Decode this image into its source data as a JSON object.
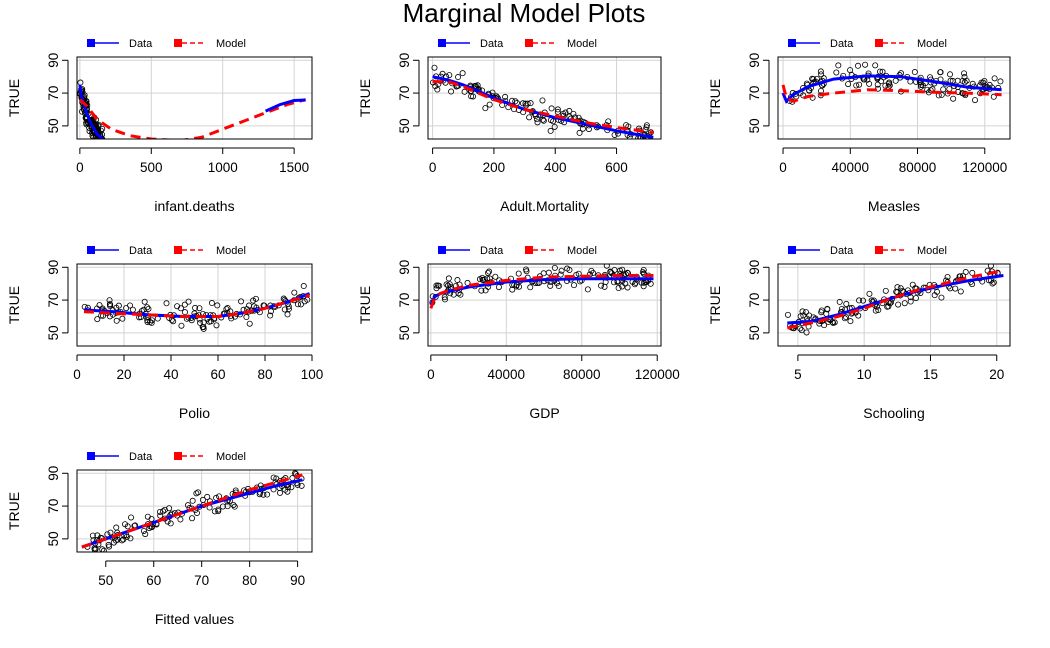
{
  "title": "Marginal Model Plots",
  "legend": {
    "data_label": "Data",
    "model_label": "Model",
    "data_color": "#0000FF",
    "model_color": "#FF0000"
  },
  "chart_data": [
    {
      "type": "scatter",
      "xlabel": "infant.deaths",
      "ylabel": "TRUE",
      "xlim": [
        -20,
        1625
      ],
      "ylim": [
        42,
        92
      ],
      "xticks": [
        0,
        500,
        1000,
        1500
      ],
      "xtick_labels": [
        "0",
        "500",
        "1000",
        "1500"
      ],
      "yticks": [
        50,
        70,
        90
      ],
      "ytick_labels": [
        "50",
        "70",
        "90"
      ],
      "series": [
        {
          "name": "Data",
          "style": "solid",
          "values": [
            [
              0,
              75
            ],
            [
              10,
              68
            ],
            [
              25,
              64
            ],
            [
              50,
              57
            ],
            [
              80,
              51
            ],
            [
              120,
              45
            ],
            [
              160,
              42
            ]
          ]
        },
        {
          "name": "Model",
          "style": "dashed",
          "values": [
            [
              0,
              66
            ],
            [
              50,
              62
            ],
            [
              120,
              54
            ],
            [
              220,
              48
            ],
            [
              350,
              44
            ],
            [
              500,
              42
            ],
            [
              700,
              41
            ],
            [
              850,
              43
            ],
            [
              1000,
              48
            ],
            [
              1150,
              53
            ],
            [
              1300,
              58
            ],
            [
              1450,
              63
            ],
            [
              1580,
              66
            ]
          ]
        },
        {
          "name": "Data",
          "style": "solid",
          "values": [
            [
              1300,
              59
            ],
            [
              1400,
              63
            ],
            [
              1500,
              65.5
            ],
            [
              1580,
              65.8
            ]
          ]
        }
      ]
    },
    {
      "type": "scatter",
      "xlabel": "Adult.Mortality",
      "ylabel": "TRUE",
      "xlim": [
        -15,
        745
      ],
      "ylim": [
        42,
        92
      ],
      "xticks": [
        0,
        200,
        400,
        600
      ],
      "xtick_labels": [
        "0",
        "200",
        "400",
        "600"
      ],
      "yticks": [
        50,
        70,
        90
      ],
      "ytick_labels": [
        "50",
        "70",
        "90"
      ],
      "series": [
        {
          "name": "Data",
          "style": "solid",
          "values": [
            [
              0,
              80
            ],
            [
              50,
              78
            ],
            [
              100,
              75
            ],
            [
              150,
              71
            ],
            [
              200,
              67
            ],
            [
              300,
              60
            ],
            [
              400,
              55
            ],
            [
              500,
              51
            ],
            [
              600,
              47
            ],
            [
              720,
              43
            ]
          ]
        },
        {
          "name": "Model",
          "style": "dashed",
          "values": [
            [
              0,
              77
            ],
            [
              50,
              77
            ],
            [
              100,
              74
            ],
            [
              150,
              70
            ],
            [
              200,
              66
            ],
            [
              300,
              60
            ],
            [
              400,
              56
            ],
            [
              500,
              52
            ],
            [
              600,
              49
            ],
            [
              720,
              46
            ]
          ]
        }
      ]
    },
    {
      "type": "scatter",
      "xlabel": "Measles",
      "ylabel": "TRUE",
      "xlim": [
        -3000,
        135000
      ],
      "ylim": [
        42,
        92
      ],
      "xticks": [
        0,
        40000,
        80000,
        120000
      ],
      "xtick_labels": [
        "0",
        "40000",
        "80000",
        "120000"
      ],
      "yticks": [
        50,
        70,
        90
      ],
      "ytick_labels": [
        "50",
        "70",
        "90"
      ],
      "series": [
        {
          "name": "Data",
          "style": "solid",
          "values": [
            [
              0,
              70
            ],
            [
              2000,
              65
            ],
            [
              6000,
              69
            ],
            [
              15000,
              74
            ],
            [
              30000,
              78.5
            ],
            [
              50000,
              80.5
            ],
            [
              70000,
              80
            ],
            [
              90000,
              77
            ],
            [
              110000,
              73.5
            ],
            [
              130000,
              72
            ]
          ]
        },
        {
          "name": "Model",
          "style": "dashed",
          "values": [
            [
              0,
              75
            ],
            [
              2000,
              67
            ],
            [
              6000,
              65
            ],
            [
              15000,
              68
            ],
            [
              30000,
              70
            ],
            [
              50000,
              72
            ],
            [
              70000,
              71.5
            ],
            [
              90000,
              70.5
            ],
            [
              110000,
              70
            ],
            [
              130000,
              69
            ]
          ]
        }
      ]
    },
    {
      "type": "scatter",
      "xlabel": "Polio",
      "ylabel": "TRUE",
      "xlim": [
        0,
        100
      ],
      "ylim": [
        42,
        92
      ],
      "xticks": [
        0,
        20,
        40,
        60,
        80,
        100
      ],
      "xtick_labels": [
        "0",
        "20",
        "40",
        "60",
        "80",
        "100"
      ],
      "yticks": [
        50,
        70,
        90
      ],
      "ytick_labels": [
        "50",
        "70",
        "90"
      ],
      "series": [
        {
          "name": "Data",
          "style": "solid",
          "values": [
            [
              3,
              64
            ],
            [
              15,
              63
            ],
            [
              30,
              61
            ],
            [
              45,
              60
            ],
            [
              60,
              60
            ],
            [
              70,
              62
            ],
            [
              80,
              65
            ],
            [
              90,
              69
            ],
            [
              99,
              74
            ]
          ]
        },
        {
          "name": "Model",
          "style": "dashed",
          "values": [
            [
              3,
              63
            ],
            [
              15,
              62
            ],
            [
              30,
              61
            ],
            [
              45,
              60
            ],
            [
              60,
              60
            ],
            [
              70,
              62
            ],
            [
              80,
              65
            ],
            [
              90,
              69
            ],
            [
              99,
              73
            ]
          ]
        }
      ]
    },
    {
      "type": "scatter",
      "xlabel": "GDP",
      "ylabel": "TRUE",
      "xlim": [
        -1500,
        122000
      ],
      "ylim": [
        42,
        92
      ],
      "xticks": [
        0,
        40000,
        80000,
        120000
      ],
      "xtick_labels": [
        "0",
        "40000",
        "80000",
        "120000"
      ],
      "yticks": [
        50,
        70,
        90
      ],
      "ytick_labels": [
        "50",
        "70",
        "90"
      ],
      "series": [
        {
          "name": "Data",
          "style": "solid",
          "values": [
            [
              0,
              67
            ],
            [
              2000,
              72
            ],
            [
              5000,
              74
            ],
            [
              10000,
              75.5
            ],
            [
              20000,
              78
            ],
            [
              40000,
              81
            ],
            [
              60000,
              82.5
            ],
            [
              80000,
              83
            ],
            [
              100000,
              83
            ],
            [
              118000,
              83
            ]
          ]
        },
        {
          "name": "Model",
          "style": "dashed",
          "values": [
            [
              0,
              65
            ],
            [
              2000,
              71
            ],
            [
              5000,
              74
            ],
            [
              10000,
              76
            ],
            [
              20000,
              79
            ],
            [
              40000,
              82
            ],
            [
              60000,
              84
            ],
            [
              80000,
              84.5
            ],
            [
              100000,
              85
            ],
            [
              118000,
              85
            ]
          ]
        }
      ]
    },
    {
      "type": "scatter",
      "xlabel": "Schooling",
      "ylabel": "TRUE",
      "xlim": [
        3.5,
        21
      ],
      "ylim": [
        42,
        92
      ],
      "xticks": [
        5,
        10,
        15,
        20
      ],
      "xtick_labels": [
        "5",
        "10",
        "15",
        "20"
      ],
      "yticks": [
        50,
        70,
        90
      ],
      "ytick_labels": [
        "50",
        "70",
        "90"
      ],
      "series": [
        {
          "name": "Data",
          "style": "solid",
          "values": [
            [
              4.2,
              56
            ],
            [
              6,
              57
            ],
            [
              8,
              61
            ],
            [
              10,
              66
            ],
            [
              12,
              71
            ],
            [
              14,
              75.5
            ],
            [
              16,
              79
            ],
            [
              18,
              82
            ],
            [
              20.5,
              85
            ]
          ]
        },
        {
          "name": "Model",
          "style": "dashed",
          "values": [
            [
              4.2,
              53
            ],
            [
              6,
              56
            ],
            [
              8,
              60
            ],
            [
              10,
              65
            ],
            [
              12,
              71
            ],
            [
              14,
              76
            ],
            [
              16,
              80
            ],
            [
              18,
              84
            ],
            [
              20.5,
              88
            ]
          ]
        }
      ]
    },
    {
      "type": "scatter",
      "xlabel": "Fitted values",
      "ylabel": "TRUE",
      "xlim": [
        44,
        93
      ],
      "ylim": [
        42,
        92
      ],
      "xticks": [
        50,
        60,
        70,
        80,
        90
      ],
      "xtick_labels": [
        "50",
        "60",
        "70",
        "80",
        "90"
      ],
      "yticks": [
        50,
        70,
        90
      ],
      "ytick_labels": [
        "50",
        "70",
        "90"
      ],
      "series": [
        {
          "name": "Data",
          "style": "solid",
          "values": [
            [
              45,
              45
            ],
            [
              50,
              50
            ],
            [
              55,
              55
            ],
            [
              60,
              60
            ],
            [
              65,
              65
            ],
            [
              70,
              70
            ],
            [
              75,
              74
            ],
            [
              80,
              78
            ],
            [
              85,
              82
            ],
            [
              91,
              86
            ]
          ]
        },
        {
          "name": "Model",
          "style": "dashed",
          "values": [
            [
              45,
              45
            ],
            [
              50,
              50
            ],
            [
              55,
              55
            ],
            [
              60,
              60
            ],
            [
              65,
              65
            ],
            [
              70,
              70
            ],
            [
              75,
              75
            ],
            [
              80,
              80
            ],
            [
              85,
              84
            ],
            [
              91,
              89
            ]
          ]
        }
      ]
    }
  ]
}
